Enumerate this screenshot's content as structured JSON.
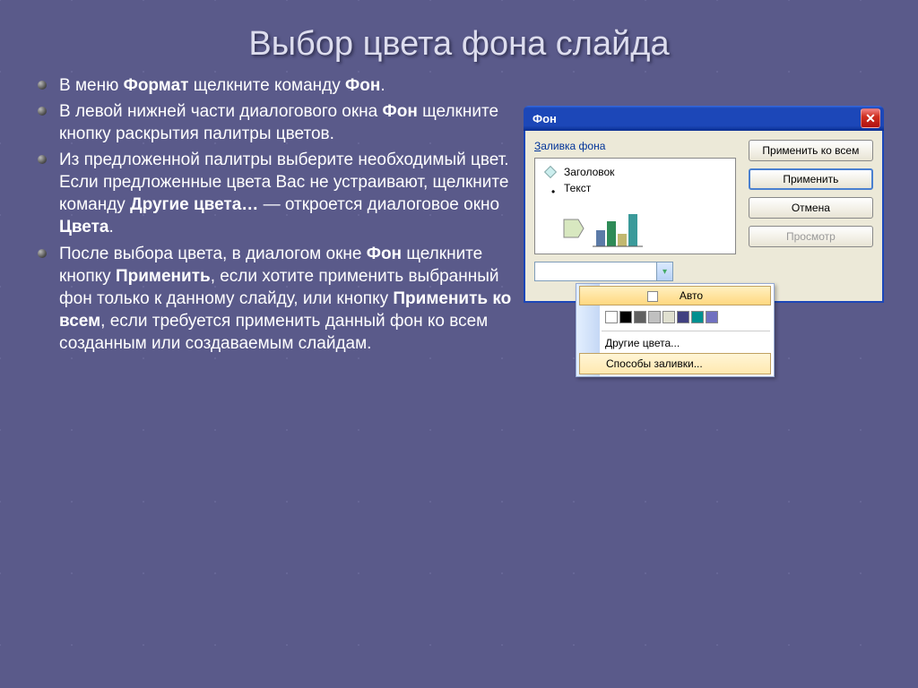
{
  "title": "Выбор цвета фона слайда",
  "bullets": [
    "В меню <b>Формат</b> щелкните команду <b>Фон</b>.",
    "В левой нижней части диалогового окна <b>Фон</b>  щелкните кнопку раскрытия палитры цветов.",
    "Из предложенной палитры выберите необходимый цвет. Если предложенные цвета Вас не устраивают,  щелкните команду <b>Другие цвета…</b> — откроется диалоговое окно <b>Цвета</b>.",
    "После выбора цвета, в диалогом окне <b>Фон</b> щелкните кнопку <b>Применить</b>, если хотите применить выбранный фон только к данному слайду, или кнопку <b>Применить ко всем</b>, если требуется применить данный фон ко всем созданным или создаваемым слайдам."
  ],
  "dialog": {
    "title": "Фон",
    "group_label": "Заливка фона",
    "preview_title": "Заголовок",
    "preview_text": "Текст",
    "buttons": {
      "apply_all": "Применить ко всем",
      "apply": "Применить",
      "cancel": "Отмена",
      "preview": "Просмотр"
    },
    "chart_colors": [
      "#5b7aa8",
      "#2e8b57",
      "#c2b870",
      "#3a9a9a"
    ]
  },
  "menu": {
    "auto": "Авто",
    "swatches": [
      "#ffffff",
      "#000000",
      "#606060",
      "#c0c0c0",
      "#e0e0d0",
      "#404080",
      "#009090",
      "#7070c0"
    ],
    "more_colors": "Другие цвета...",
    "fill_methods": "Способы заливки..."
  },
  "colors": {
    "background": "#5a5a8a",
    "title_text": "#ddddee",
    "body_text": "#ffffff",
    "xp_blue": "#1c47b8",
    "xp_face": "#ece9d8"
  }
}
